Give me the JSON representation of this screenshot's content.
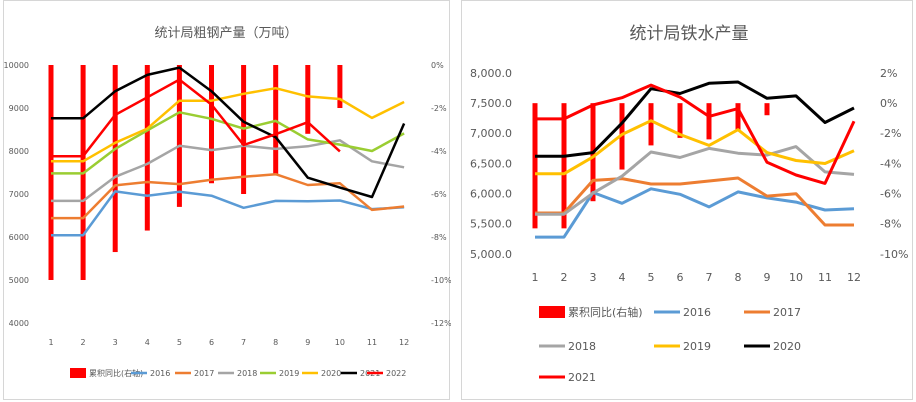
{
  "chart_data": [
    {
      "type": "bar+line",
      "title": "统计局粗钢产量（万吨）",
      "categories": [
        "1",
        "2",
        "3",
        "4",
        "5",
        "6",
        "7",
        "8",
        "9",
        "10",
        "11",
        "12"
      ],
      "ylim": [
        4000,
        10000
      ],
      "yticks": [
        "4000",
        "5000",
        "6000",
        "7000",
        "8000",
        "9000",
        "10000"
      ],
      "y2lim": [
        -12,
        0
      ],
      "y2ticks": [
        "0%",
        "-2%",
        "-4%",
        "-6%",
        "-8%",
        "-10%",
        "-12%"
      ],
      "bar_series": {
        "name": "累积同比(右轴)",
        "color": "#ff0000",
        "values": [
          -10,
          -10,
          -8.7,
          -7.7,
          -6.6,
          -5.5,
          -6.0,
          -5.1,
          -3.2,
          -2.0,
          null,
          null
        ]
      },
      "series": [
        {
          "name": "2016",
          "color": "#5b9bd5",
          "values": [
            6040,
            6040,
            7060,
            6960,
            7050,
            6960,
            6680,
            6840,
            6830,
            6850,
            6650,
            6690
          ]
        },
        {
          "name": "2017",
          "color": "#ed7d31",
          "values": [
            6440,
            6440,
            7200,
            7280,
            7230,
            7330,
            7400,
            7460,
            7210,
            7250,
            6630,
            6710
          ]
        },
        {
          "name": "2018",
          "color": "#a5a5a5",
          "values": [
            6840,
            6840,
            7400,
            7700,
            8120,
            8020,
            8120,
            8050,
            8110,
            8250,
            7760,
            7620
          ]
        },
        {
          "name": "2019",
          "color": "#9acd32",
          "values": [
            7480,
            7480,
            8050,
            8480,
            8900,
            8750,
            8520,
            8700,
            8270,
            8150,
            8000,
            8410
          ]
        },
        {
          "name": "2020",
          "color": "#ffc000",
          "values": [
            7760,
            7760,
            8190,
            8520,
            9170,
            9170,
            9330,
            9460,
            9270,
            9210,
            8770,
            9140
          ]
        },
        {
          "name": "2021",
          "color": "#000000",
          "values": [
            8760,
            8760,
            9390,
            9770,
            9940,
            9390,
            8680,
            8320,
            7380,
            7150,
            6930,
            8640
          ]
        },
        {
          "name": "2022",
          "color": "#ff0000",
          "values": [
            7880,
            7880,
            8840,
            9250,
            9660,
            9080,
            8140,
            8390,
            8670,
            7990,
            null,
            null
          ]
        }
      ]
    },
    {
      "type": "bar+line",
      "title": "统计局铁水产量",
      "categories": [
        "1",
        "2",
        "3",
        "4",
        "5",
        "6",
        "7",
        "8",
        "9",
        "10",
        "11",
        "12"
      ],
      "ylim": [
        5000,
        8000
      ],
      "yticks": [
        "5,000.0",
        "5,500.0",
        "6,000.0",
        "6,500.0",
        "7,000.0",
        "7,500.0",
        "8,000.0"
      ],
      "y2lim": [
        -10,
        2
      ],
      "y2ticks": [
        "2%",
        "0%",
        "-2%",
        "-4%",
        "-6%",
        "-8%",
        "-10%"
      ],
      "bar_series": {
        "name": "累积同比(右轴)",
        "color": "#ff0000",
        "values": [
          -8.3,
          -8.3,
          -6.5,
          -4.4,
          -2.8,
          -2.3,
          -2.4,
          -1.8,
          -0.8,
          null,
          null,
          null
        ]
      },
      "series": [
        {
          "name": "2016",
          "color": "#5b9bd5",
          "values": [
            5280,
            5280,
            6020,
            5840,
            6080,
            5990,
            5780,
            6030,
            5930,
            5860,
            5730,
            5750
          ]
        },
        {
          "name": "2017",
          "color": "#ed7d31",
          "values": [
            5680,
            5680,
            6220,
            6250,
            6160,
            6160,
            6210,
            6260,
            5960,
            6000,
            5480,
            5480
          ]
        },
        {
          "name": "2018",
          "color": "#a5a5a5",
          "values": [
            5660,
            5660,
            6010,
            6290,
            6690,
            6600,
            6750,
            6670,
            6640,
            6780,
            6360,
            6320
          ]
        },
        {
          "name": "2019",
          "color": "#ffc000",
          "values": [
            6330,
            6330,
            6610,
            6980,
            7210,
            6980,
            6800,
            7060,
            6680,
            6550,
            6500,
            6710
          ]
        },
        {
          "name": "2020",
          "color": "#000000",
          "values": [
            6620,
            6620,
            6680,
            7170,
            7740,
            7660,
            7830,
            7850,
            7580,
            7620,
            7180,
            7420
          ]
        },
        {
          "name": "2021",
          "color": "#ff0000",
          "values": [
            7240,
            7240,
            7470,
            7590,
            7800,
            7600,
            7280,
            7410,
            6520,
            6310,
            6170,
            7200
          ]
        }
      ]
    }
  ]
}
